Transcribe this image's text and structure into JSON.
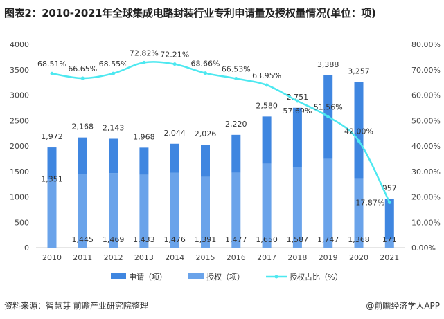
{
  "title": "图表2：2010-2021年全球集成电路封装行业专利申请量及授权量情况(单位：项)",
  "source": "资料来源：智慧芽 前瞻产业研究院整理",
  "brand": "@前瞻经济学人APP",
  "chart_data": {
    "type": "bar+line",
    "categories": [
      "2010",
      "2011",
      "2012",
      "2013",
      "2014",
      "2015",
      "2016",
      "2017",
      "2018",
      "2019",
      "2020",
      "2021"
    ],
    "series": [
      {
        "name": "申请（项）",
        "type": "bar",
        "color": "#3f86e0",
        "values": [
          1972,
          2168,
          2143,
          1968,
          2044,
          2026,
          2220,
          2580,
          2751,
          3388,
          3257,
          957
        ],
        "labels": [
          "1,972",
          "2,168",
          "2,143",
          "1,968",
          "2,044",
          "2,026",
          "2,220",
          "2,580",
          "2,751",
          "3,388",
          "3,257",
          "957"
        ]
      },
      {
        "name": "授权（项）",
        "type": "bar",
        "color": "#6aa3ea",
        "values": [
          1351,
          1445,
          1469,
          1433,
          1476,
          1391,
          1477,
          1650,
          1587,
          1747,
          1368,
          171
        ],
        "labels": [
          "1,351",
          "1,445",
          "1,469",
          "1,433",
          "1,476",
          "1,391",
          "1,477",
          "1,650",
          "1,587",
          "1,747",
          "1,368",
          "171"
        ]
      },
      {
        "name": "授权占比（%）",
        "type": "line",
        "axis": "right",
        "color": "#4de8f0",
        "values": [
          68.51,
          66.65,
          68.55,
          72.82,
          72.21,
          68.66,
          66.53,
          63.95,
          57.69,
          51.56,
          42.0,
          17.87
        ],
        "labels": [
          "68.51%",
          "66.65%",
          "68.55%",
          "72.82%",
          "72.21%",
          "68.66%",
          "66.53%",
          "63.95%",
          "57.69%",
          "51.56%",
          "42.00%",
          "17.87%"
        ]
      }
    ],
    "y_left": {
      "range": [
        0,
        4000
      ],
      "ticks": [
        "0",
        "500",
        "1000",
        "1500",
        "2000",
        "2500",
        "3000",
        "3500",
        "4000"
      ]
    },
    "y_right": {
      "range": [
        0,
        80
      ],
      "ticks": [
        "0.00%",
        "10.00%",
        "20.00%",
        "30.00%",
        "40.00%",
        "50.00%",
        "60.00%",
        "70.00%",
        "80.00%"
      ]
    },
    "grid": false,
    "legend": "bottom"
  }
}
